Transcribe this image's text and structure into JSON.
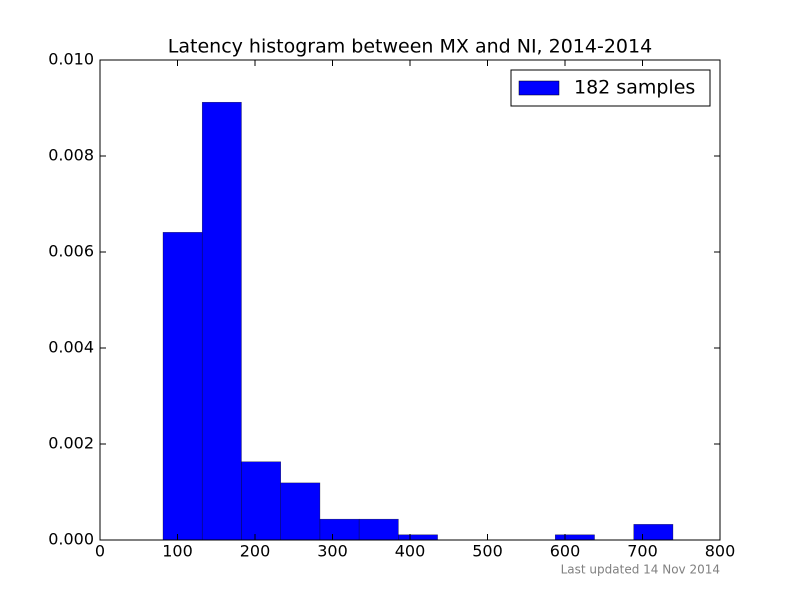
{
  "chart_data": {
    "type": "histogram",
    "title": "Latency histogram between MX and NI, 2014-2014",
    "footnote": "Last updated 14 Nov 2014",
    "bins": [
      81.3,
      131.9,
      182.5,
      233.2,
      283.8,
      334.4,
      385.0,
      435.6,
      486.2,
      536.8,
      587.4,
      638.1,
      688.7,
      739.3
    ],
    "series": [
      {
        "name": "182 samples",
        "color": "#0000ff",
        "values": [
          0.00641,
          0.00912,
          0.00163,
          0.00119,
          0.000434,
          0.000434,
          0.000109,
          0,
          0,
          0,
          0.000109,
          0,
          0.000326
        ]
      }
    ],
    "xlim": [
      0,
      800
    ],
    "xticks": [
      0,
      100,
      200,
      300,
      400,
      500,
      600,
      700,
      800
    ],
    "ylim": [
      0,
      0.01
    ],
    "yticks": [
      {
        "value": 0,
        "label": "0.000"
      },
      {
        "value": 0.002,
        "label": "0.002"
      },
      {
        "value": 0.004,
        "label": "0.004"
      },
      {
        "value": 0.006,
        "label": "0.006"
      },
      {
        "value": 0.008,
        "label": "0.008"
      },
      {
        "value": 0.01,
        "label": "0.010"
      }
    ],
    "legend": "upper right",
    "grid": false
  }
}
